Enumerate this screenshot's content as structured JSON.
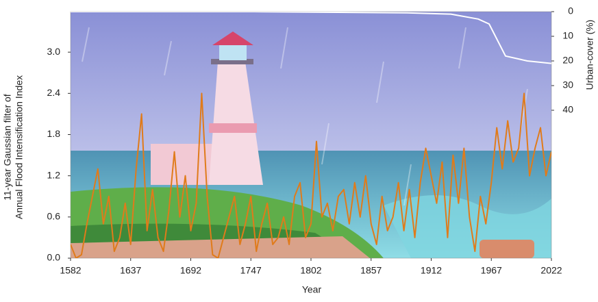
{
  "chart_data": {
    "type": "line",
    "x_label": "Year",
    "y_label": [
      "11-year Gaussian filter of",
      "Annual Flood Intensification Index"
    ],
    "y2_label": "Urban-cover (%)",
    "xlim": [
      1582,
      2022
    ],
    "xticks": [
      1582,
      1637,
      1692,
      1747,
      1802,
      1857,
      1912,
      1967,
      2022
    ],
    "ylim": [
      0,
      3.59
    ],
    "yticks": [
      {
        "value": 0,
        "label": "0.0"
      },
      0.6,
      1.2,
      1.8,
      2.4,
      {
        "value": 3,
        "label": "3.0"
      }
    ],
    "y2lim": [
      0,
      100
    ],
    "y2_inverted": true,
    "y2ticks": [
      0,
      10,
      20,
      30,
      40
    ],
    "series": [
      {
        "color": "#e07b1a",
        "x": [
          1582,
          1587,
          1592,
          1597,
          1602,
          1607,
          1612,
          1617,
          1622,
          1627,
          1632,
          1637,
          1642,
          1647,
          1652,
          1657,
          1662,
          1667,
          1672,
          1677,
          1682,
          1687,
          1692,
          1697,
          1702,
          1707,
          1712,
          1717,
          1722,
          1727,
          1732,
          1737,
          1742,
          1747,
          1752,
          1757,
          1762,
          1767,
          1772,
          1777,
          1782,
          1787,
          1792,
          1797,
          1802,
          1807,
          1812,
          1817,
          1822,
          1827,
          1832,
          1837,
          1842,
          1847,
          1852,
          1857,
          1862,
          1867,
          1872,
          1877,
          1882,
          1887,
          1892,
          1897,
          1902,
          1907,
          1912,
          1917,
          1922,
          1927,
          1932,
          1937,
          1942,
          1947,
          1952,
          1957,
          1962,
          1967,
          1972,
          1977,
          1982,
          1987,
          1992,
          1997,
          2002,
          2007,
          2012,
          2017,
          2022
        ],
        "values": [
          0.2,
          0.0,
          0.05,
          0.5,
          0.9,
          1.3,
          0.5,
          0.9,
          0.1,
          0.3,
          0.8,
          0.2,
          1.3,
          2.1,
          0.4,
          1.0,
          0.3,
          0.1,
          0.7,
          1.55,
          0.6,
          1.2,
          0.4,
          0.8,
          2.4,
          0.9,
          0.05,
          0.0,
          0.3,
          0.6,
          0.9,
          0.2,
          0.5,
          0.9,
          0.1,
          0.5,
          0.8,
          0.2,
          0.3,
          0.6,
          0.2,
          0.9,
          1.1,
          0.3,
          0.5,
          1.7,
          0.6,
          0.8,
          0.4,
          0.9,
          1.0,
          0.5,
          1.1,
          0.6,
          1.2,
          0.5,
          0.2,
          0.9,
          0.4,
          0.6,
          1.1,
          0.4,
          1.0,
          0.3,
          1.1,
          1.6,
          1.2,
          0.8,
          1.4,
          0.3,
          1.5,
          0.8,
          1.6,
          0.6,
          0.1,
          0.9,
          0.5,
          1.1,
          1.9,
          1.3,
          2.0,
          1.4,
          1.6,
          2.4,
          1.2,
          1.6,
          1.9,
          1.2,
          1.55
        ]
      },
      {
        "color": "#ffffff",
        "axis": "y2",
        "x": [
          1582,
          1750,
          1890,
          1930,
          1955,
          1965,
          1980,
          2000,
          2022
        ],
        "values": [
          0,
          0,
          0.5,
          1,
          3,
          5,
          18,
          20,
          21
        ]
      }
    ]
  }
}
